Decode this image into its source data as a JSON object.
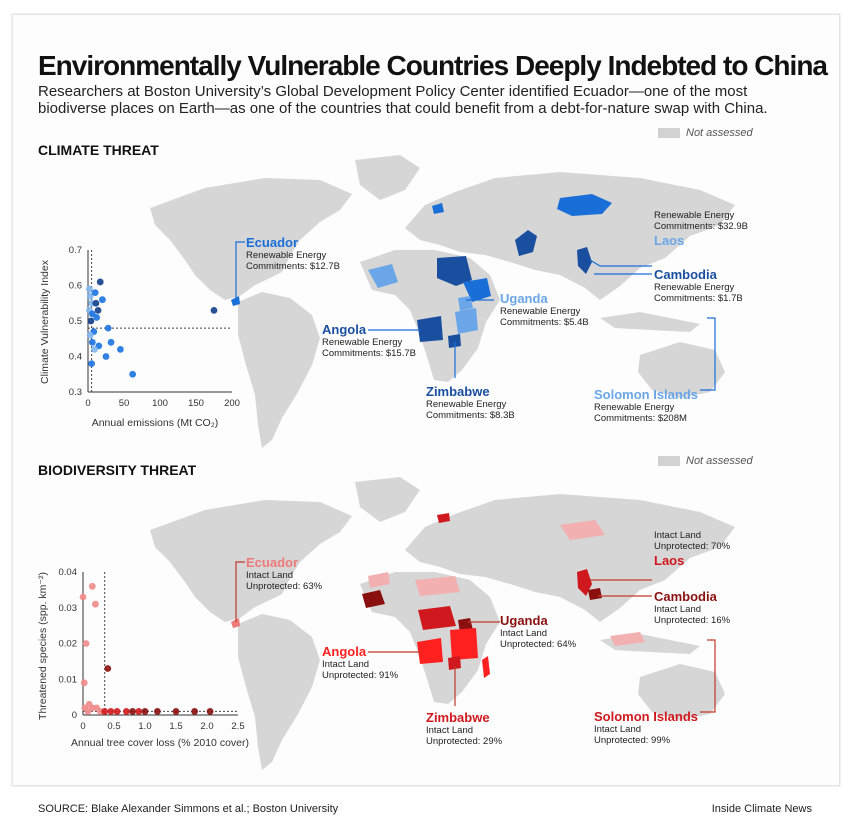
{
  "header": {
    "title": "Environmentally Vulnerable Countries  Deeply Indebted to China",
    "subtitle": "Researchers at Boston University’s Global Development Policy Center identified Ecuador—one of the most biodiverse places on Earth—as one of the countries that could benefit from a debt-for-nature swap with China."
  },
  "climate": {
    "heading": "CLIMATE THREAT",
    "legend": "Not assessed",
    "callouts": [
      {
        "name": "Ecuador",
        "l1": "Renewable Energy",
        "l2": "Commitments: $12.7B"
      },
      {
        "name": "",
        "l1": "Renewable Energy",
        "l2": "Commitments: $32.9B"
      },
      {
        "name": "Laos",
        "l1": "",
        "l2": ""
      },
      {
        "name": "Cambodia",
        "l1": "Renewable Energy",
        "l2": "Commitments: $1.7B"
      },
      {
        "name": "Uganda",
        "l1": "Renewable Energy",
        "l2": "Commitments: $5.4B"
      },
      {
        "name": "Angola",
        "l1": "Renewable Energy",
        "l2": "Commitments: $15.7B"
      },
      {
        "name": "Zimbabwe",
        "l1": "Renewable Energy",
        "l2": "Commitments: $8.3B"
      },
      {
        "name": "Solomon Islands",
        "l1": "Renewable Energy",
        "l2": "Commitments: $208M"
      }
    ]
  },
  "biodiversity": {
    "heading": "BIODIVERSITY THREAT",
    "legend": "Not assessed",
    "callouts": [
      {
        "name": "Ecuador",
        "l1": "Intact Land",
        "l2": "Unprotected: 63%"
      },
      {
        "name": "",
        "l1": "Intact Land",
        "l2": "Unprotected: 70%"
      },
      {
        "name": "Laos",
        "l1": "",
        "l2": ""
      },
      {
        "name": "Cambodia",
        "l1": "Intact Land",
        "l2": "Unprotected: 16%"
      },
      {
        "name": "Uganda",
        "l1": "Intact Land",
        "l2": "Unprotected: 64%"
      },
      {
        "name": "Angola",
        "l1": "Intact Land",
        "l2": "Unprotected: 91%"
      },
      {
        "name": "Zimbabwe",
        "l1": "Intact Land",
        "l2": "Unprotected: 29%"
      },
      {
        "name": "Solomon Islands",
        "l1": "Intact Land",
        "l2": "Unprotected: 99%"
      }
    ]
  },
  "colors": {
    "climate_name": "#1a4fa0",
    "climate_light": "#6aa6e8",
    "bio_name": "#d0191e",
    "bio_dark": "#8a1010",
    "bio_light": "#ee7a7a",
    "land": "#d6d6d6"
  },
  "footer": {
    "source": "SOURCE: Blake Alexander Simmons et al.; Boston University",
    "credit": "Inside Climate News"
  },
  "chart_data": [
    {
      "type": "scatter",
      "xlabel": "Annual emissions (Mt CO₂)",
      "ylabel": "Climate Vulnerability Index",
      "xlim": [
        0,
        200
      ],
      "ylim": [
        0.3,
        0.7
      ],
      "xticks": [
        "0",
        "50",
        "100",
        "150",
        "200"
      ],
      "yticks": [
        "0.3",
        "0.4",
        "0.5",
        "0.6",
        "0.7"
      ],
      "reference_x": 5,
      "reference_y": 0.48,
      "points": [
        {
          "x": 2,
          "y": 0.59,
          "c": "light"
        },
        {
          "x": 3,
          "y": 0.57,
          "c": "light"
        },
        {
          "x": 5,
          "y": 0.55,
          "c": "light"
        },
        {
          "x": 2,
          "y": 0.53,
          "c": "light"
        },
        {
          "x": 6,
          "y": 0.52,
          "c": "mid"
        },
        {
          "x": 4,
          "y": 0.5,
          "c": "dark"
        },
        {
          "x": 8,
          "y": 0.47,
          "c": "mid"
        },
        {
          "x": 3,
          "y": 0.46,
          "c": "light"
        },
        {
          "x": 6,
          "y": 0.44,
          "c": "mid"
        },
        {
          "x": 5,
          "y": 0.38,
          "c": "mid"
        },
        {
          "x": 10,
          "y": 0.58,
          "c": "mid"
        },
        {
          "x": 11,
          "y": 0.55,
          "c": "dark"
        },
        {
          "x": 14,
          "y": 0.53,
          "c": "dark"
        },
        {
          "x": 12,
          "y": 0.51,
          "c": "mid"
        },
        {
          "x": 17,
          "y": 0.61,
          "c": "dark"
        },
        {
          "x": 20,
          "y": 0.56,
          "c": "mid"
        },
        {
          "x": 15,
          "y": 0.43,
          "c": "mid"
        },
        {
          "x": 9,
          "y": 0.42,
          "c": "light"
        },
        {
          "x": 28,
          "y": 0.48,
          "c": "mid"
        },
        {
          "x": 32,
          "y": 0.44,
          "c": "mid"
        },
        {
          "x": 25,
          "y": 0.4,
          "c": "mid"
        },
        {
          "x": 45,
          "y": 0.42,
          "c": "mid"
        },
        {
          "x": 62,
          "y": 0.35,
          "c": "mid"
        },
        {
          "x": 175,
          "y": 0.53,
          "c": "dark"
        }
      ]
    },
    {
      "type": "scatter",
      "xlabel": "Annual tree cover loss (% 2010 cover)",
      "ylabel": "Threatened species (spp. km⁻²)",
      "xlim": [
        0,
        2.5
      ],
      "ylim": [
        0,
        0.04
      ],
      "xticks": [
        "0",
        "0.5",
        "1.0",
        "1.5",
        "2.0",
        "2.5"
      ],
      "yticks": [
        "0",
        "0.01",
        "0.02",
        "0.03",
        "0.04"
      ],
      "reference_x": 0.35,
      "reference_y": 0.001,
      "points": [
        {
          "x": 0.15,
          "y": 0.036,
          "c": "light"
        },
        {
          "x": 0.0,
          "y": 0.033,
          "c": "light"
        },
        {
          "x": 0.2,
          "y": 0.031,
          "c": "light"
        },
        {
          "x": 0.05,
          "y": 0.02,
          "c": "light"
        },
        {
          "x": 0.02,
          "y": 0.009,
          "c": "light"
        },
        {
          "x": 0.4,
          "y": 0.013,
          "c": "dark"
        },
        {
          "x": 0.03,
          "y": 0.002,
          "c": "light"
        },
        {
          "x": 0.1,
          "y": 0.003,
          "c": "light"
        },
        {
          "x": 0.15,
          "y": 0.002,
          "c": "light"
        },
        {
          "x": 0.22,
          "y": 0.002,
          "c": "light"
        },
        {
          "x": 0.28,
          "y": 0.001,
          "c": "light"
        },
        {
          "x": 0.08,
          "y": 0.001,
          "c": "light"
        },
        {
          "x": 0.35,
          "y": 0.001,
          "c": "mid"
        },
        {
          "x": 0.45,
          "y": 0.001,
          "c": "mid"
        },
        {
          "x": 0.55,
          "y": 0.001,
          "c": "mid"
        },
        {
          "x": 0.7,
          "y": 0.001,
          "c": "mid"
        },
        {
          "x": 0.8,
          "y": 0.001,
          "c": "dark"
        },
        {
          "x": 0.9,
          "y": 0.001,
          "c": "mid"
        },
        {
          "x": 1.0,
          "y": 0.001,
          "c": "dark"
        },
        {
          "x": 1.2,
          "y": 0.001,
          "c": "dark"
        },
        {
          "x": 1.5,
          "y": 0.001,
          "c": "dark"
        },
        {
          "x": 1.8,
          "y": 0.001,
          "c": "dark"
        },
        {
          "x": 2.05,
          "y": 0.001,
          "c": "dark"
        }
      ]
    }
  ]
}
